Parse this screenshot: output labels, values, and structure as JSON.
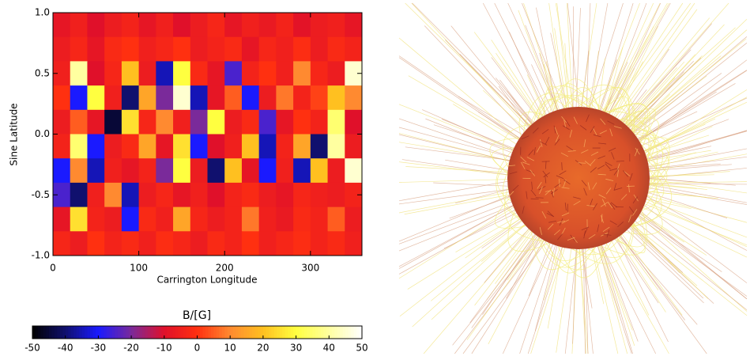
{
  "chart_data": [
    {
      "type": "heatmap",
      "x_label": "Carrington Longitude",
      "y_label": "Sine Latitude",
      "xlim": [
        0,
        360
      ],
      "ylim": [
        -1,
        1
      ],
      "xticks": [
        0,
        100,
        200,
        300
      ],
      "yticks": [
        {
          "value": 1,
          "label": "1.0"
        },
        0.5,
        {
          "value": 0,
          "label": "0.0"
        },
        -0.5,
        {
          "value": -1,
          "label": "-1.0"
        }
      ],
      "z": [
        [
          -8,
          -5,
          -10,
          -6,
          -4,
          -8,
          -5,
          -10,
          -6,
          -3,
          -8,
          -5,
          -7,
          -4,
          -9,
          -6,
          -5,
          -8
        ],
        [
          -6,
          -3,
          -8,
          -2,
          0,
          -5,
          -3,
          0,
          -6,
          -4,
          -2,
          -8,
          -3,
          -5,
          -1,
          -6,
          -2,
          -4
        ],
        [
          -5,
          40,
          -10,
          -3,
          20,
          -6,
          -35,
          30,
          -2,
          -8,
          -25,
          -4,
          0,
          -5,
          10,
          -3,
          -6,
          45
        ],
        [
          0,
          -30,
          30,
          -5,
          -40,
          15,
          -20,
          45,
          -35,
          -8,
          5,
          -30,
          -6,
          8,
          -4,
          2,
          20,
          10
        ],
        [
          -6,
          5,
          -8,
          -45,
          25,
          -3,
          10,
          -5,
          -20,
          30,
          -6,
          -2,
          -25,
          -8,
          0,
          -4,
          35,
          -10
        ],
        [
          -4,
          35,
          -30,
          -6,
          -2,
          15,
          -8,
          25,
          -30,
          -10,
          -5,
          20,
          -35,
          -4,
          15,
          -40,
          40,
          -6
        ],
        [
          -30,
          10,
          -35,
          -5,
          -8,
          -4,
          -20,
          30,
          -6,
          -40,
          20,
          -8,
          -30,
          -5,
          -35,
          20,
          -6,
          45
        ],
        [
          -25,
          -40,
          -5,
          10,
          -35,
          -6,
          -3,
          -8,
          -5,
          -10,
          -4,
          -2,
          -6,
          -8,
          -3,
          -5,
          -6,
          -4
        ],
        [
          -8,
          25,
          -4,
          -6,
          -30,
          -2,
          -5,
          15,
          -3,
          -6,
          -4,
          8,
          -5,
          -7,
          -2,
          -4,
          5,
          -6
        ],
        [
          -3,
          -6,
          0,
          -4,
          -2,
          -5,
          -1,
          -3,
          -6,
          -2,
          -4,
          0,
          -5,
          -3,
          -1,
          -4,
          -2,
          -5
        ]
      ],
      "colorbar_title": "B/[G]",
      "zlim": [
        -50,
        50
      ],
      "zticks": [
        -50,
        -40,
        -30,
        -20,
        -10,
        0,
        10,
        20,
        30,
        40,
        50
      ],
      "colors": [
        "#000000",
        "#10106e",
        "#1a1aff",
        "#7a2a9a",
        "#e0102a",
        "#ff3010",
        "#ff8a30",
        "#ffc020",
        "#ffff40",
        "#ffffa0",
        "#ffffff"
      ]
    }
  ]
}
